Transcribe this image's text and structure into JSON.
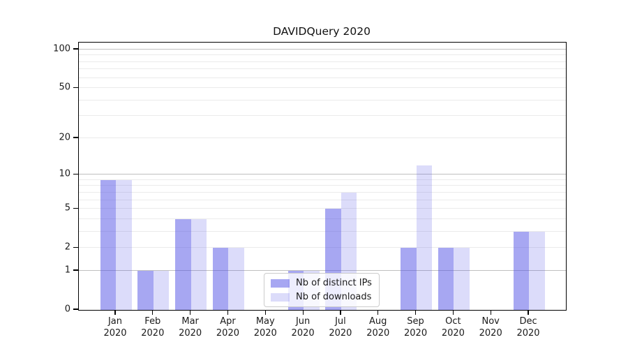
{
  "title": "DAVIDQuery 2020",
  "chart_data": {
    "type": "bar",
    "title": "DAVIDQuery 2020",
    "xlabel": "",
    "ylabel": "",
    "yscale": "log1p",
    "ylim": [
      0,
      113
    ],
    "y_ticks": [
      0,
      1,
      2,
      5,
      10,
      20,
      50,
      100
    ],
    "y_tick_labels": [
      "0",
      "1",
      "2",
      "5",
      "10",
      "20",
      "50",
      "100"
    ],
    "grid": {
      "major": [
        1,
        10,
        100
      ],
      "minor": [
        2,
        3,
        4,
        5,
        6,
        7,
        8,
        9,
        20,
        30,
        40,
        50,
        60,
        70,
        80,
        90
      ]
    },
    "categories": [
      "Jan 2020",
      "Feb 2020",
      "Mar 2020",
      "Apr 2020",
      "May 2020",
      "Jun 2020",
      "Jul 2020",
      "Aug 2020",
      "Sep 2020",
      "Oct 2020",
      "Nov 2020",
      "Dec 2020"
    ],
    "series": [
      {
        "name": "Nb of distinct IPs",
        "color": "rgba(80,80,230,0.5)",
        "values": [
          9,
          1,
          4,
          2,
          0,
          1,
          5,
          0,
          2,
          2,
          0,
          3
        ]
      },
      {
        "name": "Nb of downloads",
        "color": "rgba(80,80,230,0.2)",
        "values": [
          9,
          1,
          4,
          2,
          0,
          1,
          7,
          0,
          12,
          2,
          0,
          3
        ]
      }
    ],
    "legend_position": "lower center"
  },
  "colors": {
    "grid_major": "#c0c0c0",
    "grid_minor": "#ebebeb",
    "axis": "#000000",
    "text": "#1a1a1a",
    "legend_border": "#cccccc",
    "legend_background": "rgba(255,255,255,0.8)"
  }
}
